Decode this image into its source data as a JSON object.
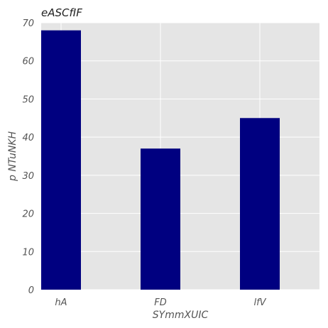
{
  "chart_data": {
    "type": "bar",
    "title": "eASCfIF",
    "xlabel": "SYmmXUIC",
    "ylabel": "p NTuNKH",
    "categories": [
      "hA",
      "FD",
      "lfV"
    ],
    "values": [
      68,
      37,
      45
    ],
    "ylim": [
      0,
      70
    ],
    "yticks": [
      0,
      10,
      20,
      30,
      40,
      50,
      60,
      70
    ],
    "grid": true,
    "colors": {
      "bar": "#000080",
      "plot_bg": "#e5e5e5",
      "grid": "#ffffff"
    }
  }
}
